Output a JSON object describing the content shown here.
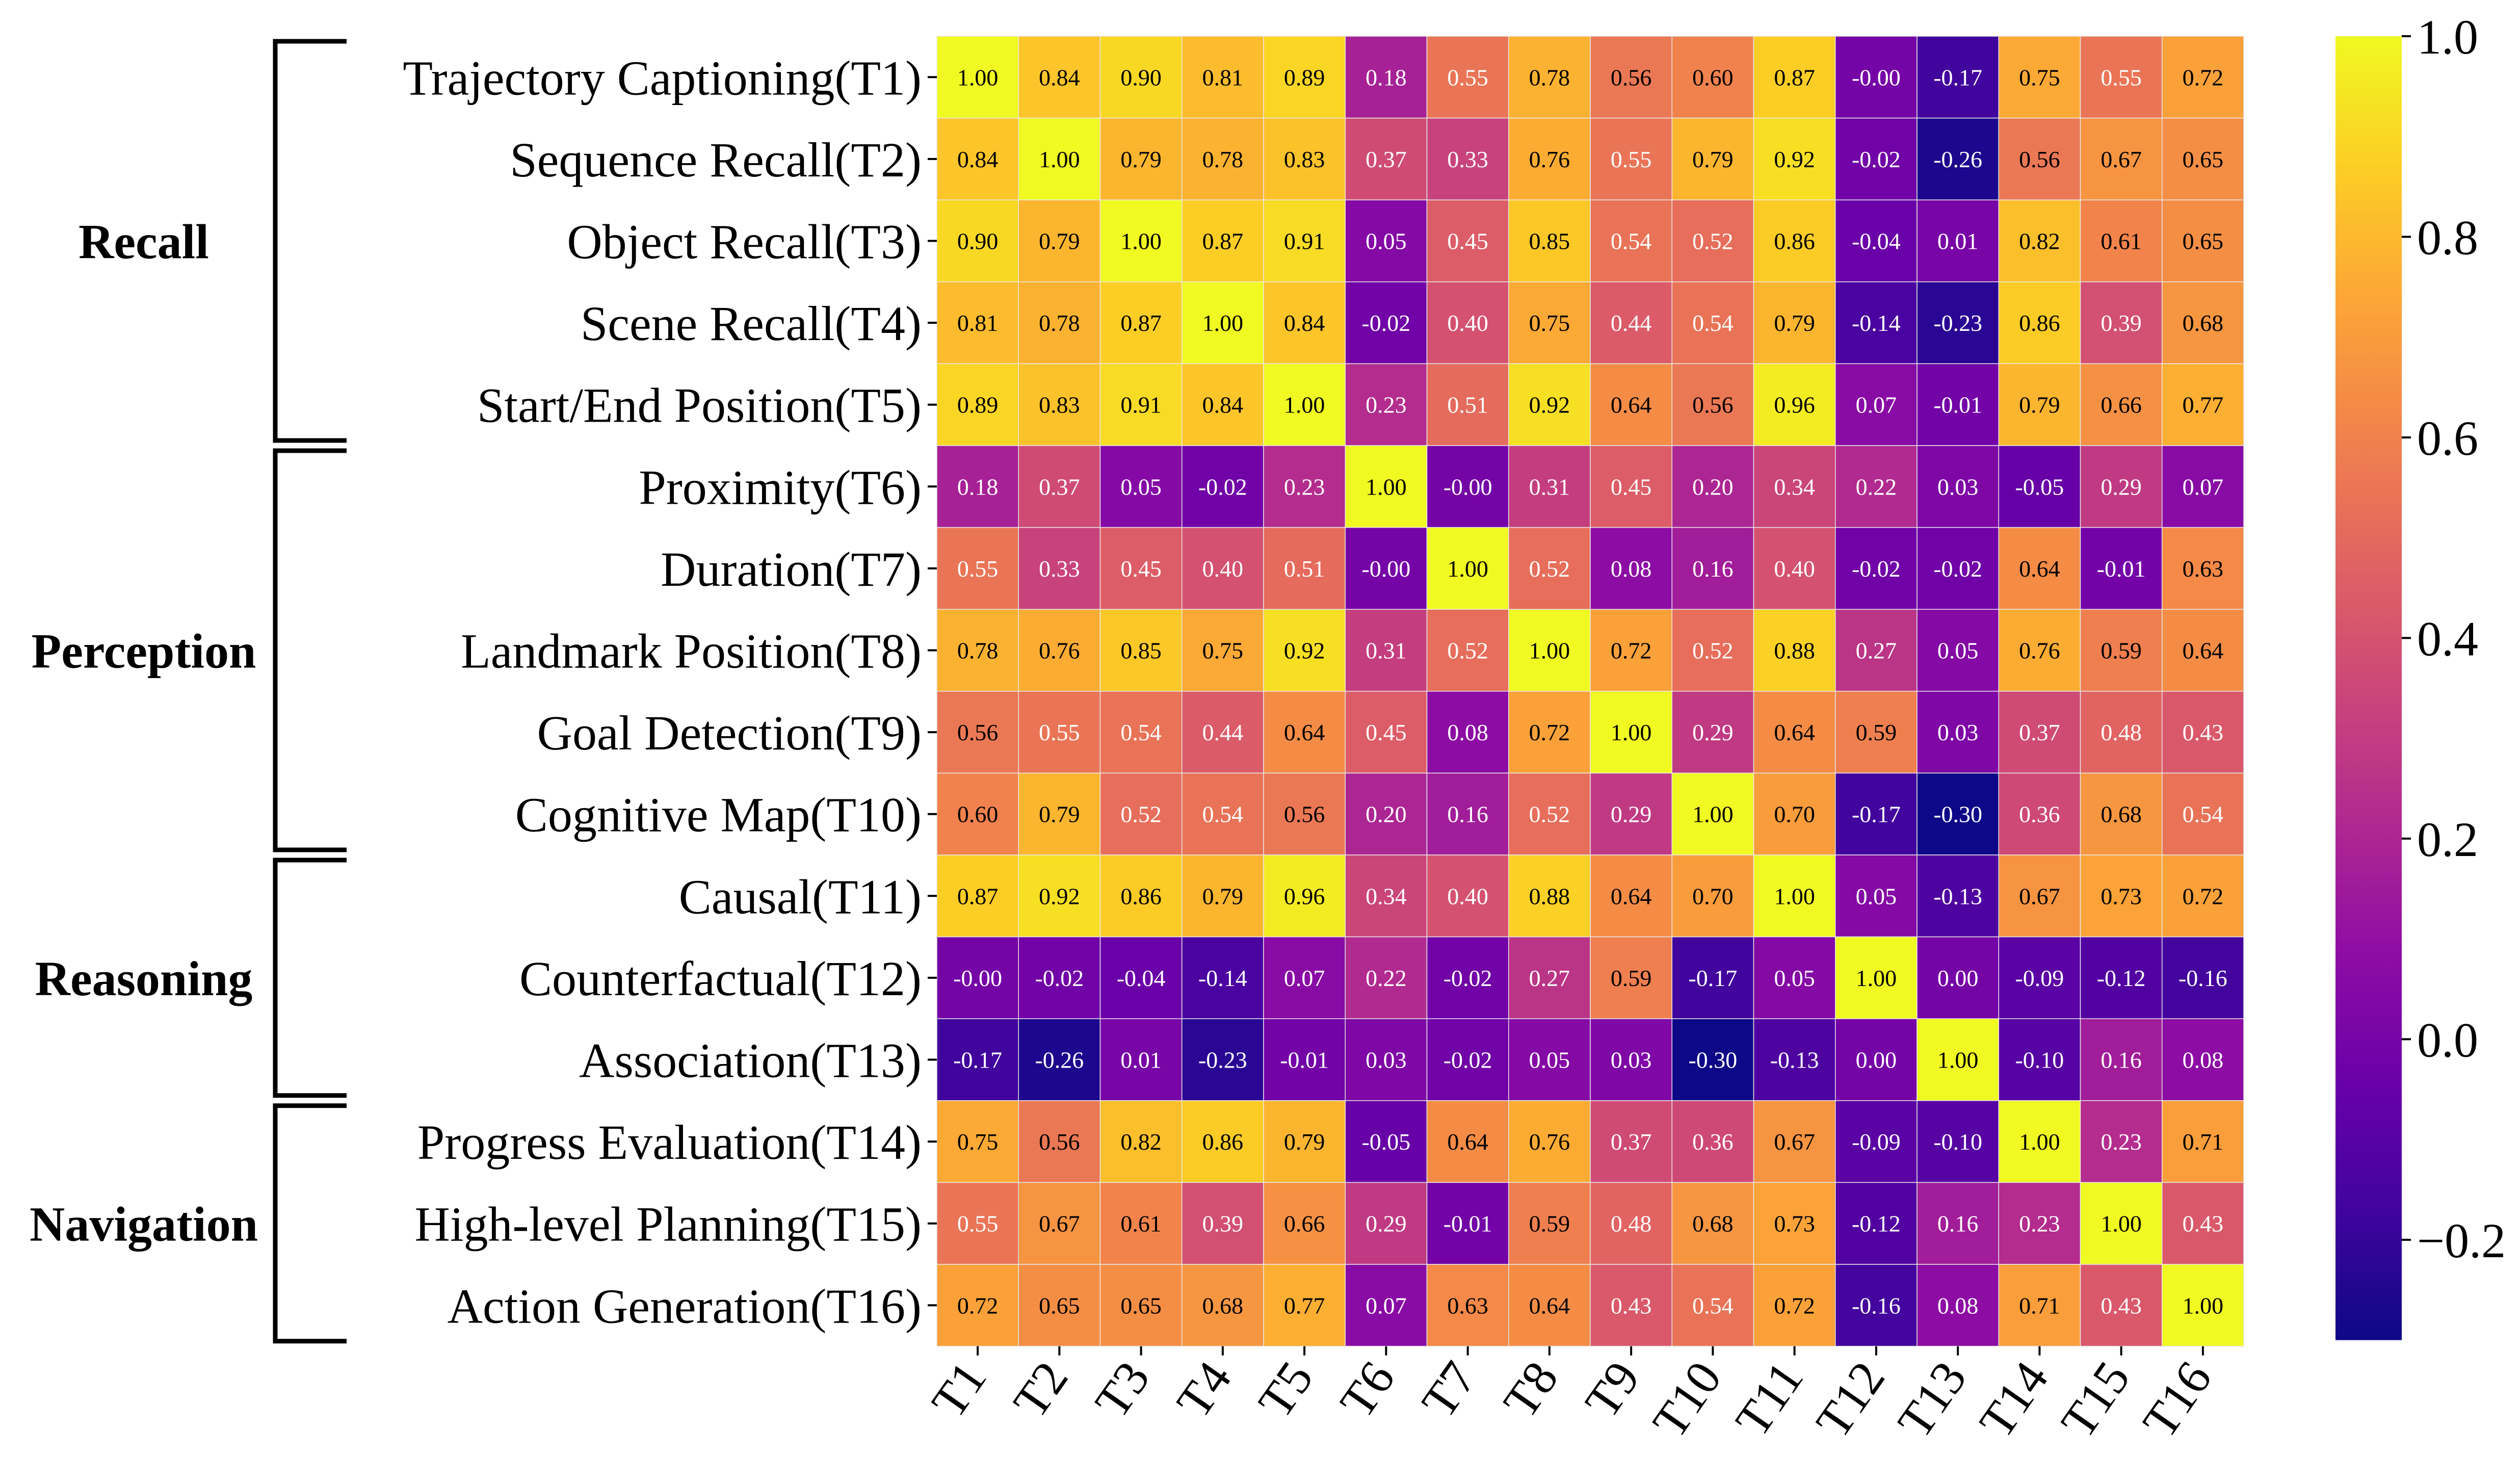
{
  "chart_data": {
    "type": "heatmap",
    "title": "",
    "xlabel": "",
    "ylabel": "",
    "colormap": "plasma",
    "cell_border_color": "#e8e8e8",
    "categories_x": [
      "T1",
      "T2",
      "T3",
      "T4",
      "T5",
      "T6",
      "T7",
      "T8",
      "T9",
      "T10",
      "T11",
      "T12",
      "T13",
      "T14",
      "T15",
      "T16"
    ],
    "categories_y": [
      "Trajectory Captioning(T1)",
      "Sequence Recall(T2)",
      "Object Recall(T3)",
      "Scene Recall(T4)",
      "Start/End Position(T5)",
      "Proximity(T6)",
      "Duration(T7)",
      "Landmark Position(T8)",
      "Goal Detection(T9)",
      "Cognitive Map(T10)",
      "Causal(T11)",
      "Counterfactual(T12)",
      "Association(T13)",
      "Progress Evaluation(T14)",
      "High-level Planning(T15)",
      "Action Generation(T16)"
    ],
    "cell_labels": [
      [
        "1.00",
        "0.84",
        "0.90",
        "0.81",
        "0.89",
        "0.18",
        "0.55",
        "0.78",
        "0.56",
        "0.60",
        "0.87",
        "-0.00",
        "-0.17",
        "0.75",
        "0.55",
        "0.72"
      ],
      [
        "0.84",
        "1.00",
        "0.79",
        "0.78",
        "0.83",
        "0.37",
        "0.33",
        "0.76",
        "0.55",
        "0.79",
        "0.92",
        "-0.02",
        "-0.26",
        "0.56",
        "0.67",
        "0.65"
      ],
      [
        "0.90",
        "0.79",
        "1.00",
        "0.87",
        "0.91",
        "0.05",
        "0.45",
        "0.85",
        "0.54",
        "0.52",
        "0.86",
        "-0.04",
        "0.01",
        "0.82",
        "0.61",
        "0.65"
      ],
      [
        "0.81",
        "0.78",
        "0.87",
        "1.00",
        "0.84",
        "-0.02",
        "0.40",
        "0.75",
        "0.44",
        "0.54",
        "0.79",
        "-0.14",
        "-0.23",
        "0.86",
        "0.39",
        "0.68"
      ],
      [
        "0.89",
        "0.83",
        "0.91",
        "0.84",
        "1.00",
        "0.23",
        "0.51",
        "0.92",
        "0.64",
        "0.56",
        "0.96",
        "0.07",
        "-0.01",
        "0.79",
        "0.66",
        "0.77"
      ],
      [
        "0.18",
        "0.37",
        "0.05",
        "-0.02",
        "0.23",
        "1.00",
        "-0.00",
        "0.31",
        "0.45",
        "0.20",
        "0.34",
        "0.22",
        "0.03",
        "-0.05",
        "0.29",
        "0.07"
      ],
      [
        "0.55",
        "0.33",
        "0.45",
        "0.40",
        "0.51",
        "-0.00",
        "1.00",
        "0.52",
        "0.08",
        "0.16",
        "0.40",
        "-0.02",
        "-0.02",
        "0.64",
        "-0.01",
        "0.63"
      ],
      [
        "0.78",
        "0.76",
        "0.85",
        "0.75",
        "0.92",
        "0.31",
        "0.52",
        "1.00",
        "0.72",
        "0.52",
        "0.88",
        "0.27",
        "0.05",
        "0.76",
        "0.59",
        "0.64"
      ],
      [
        "0.56",
        "0.55",
        "0.54",
        "0.44",
        "0.64",
        "0.45",
        "0.08",
        "0.72",
        "1.00",
        "0.29",
        "0.64",
        "0.59",
        "0.03",
        "0.37",
        "0.48",
        "0.43"
      ],
      [
        "0.60",
        "0.79",
        "0.52",
        "0.54",
        "0.56",
        "0.20",
        "0.16",
        "0.52",
        "0.29",
        "1.00",
        "0.70",
        "-0.17",
        "-0.30",
        "0.36",
        "0.68",
        "0.54"
      ],
      [
        "0.87",
        "0.92",
        "0.86",
        "0.79",
        "0.96",
        "0.34",
        "0.40",
        "0.88",
        "0.64",
        "0.70",
        "1.00",
        "0.05",
        "-0.13",
        "0.67",
        "0.73",
        "0.72"
      ],
      [
        "-0.00",
        "-0.02",
        "-0.04",
        "-0.14",
        "0.07",
        "0.22",
        "-0.02",
        "0.27",
        "0.59",
        "-0.17",
        "0.05",
        "1.00",
        "0.00",
        "-0.09",
        "-0.12",
        "-0.16"
      ],
      [
        "-0.17",
        "-0.26",
        "0.01",
        "-0.23",
        "-0.01",
        "0.03",
        "-0.02",
        "0.05",
        "0.03",
        "-0.30",
        "-0.13",
        "0.00",
        "1.00",
        "-0.10",
        "0.16",
        "0.08"
      ],
      [
        "0.75",
        "0.56",
        "0.82",
        "0.86",
        "0.79",
        "-0.05",
        "0.64",
        "0.76",
        "0.37",
        "0.36",
        "0.67",
        "-0.09",
        "-0.10",
        "1.00",
        "0.23",
        "0.71"
      ],
      [
        "0.55",
        "0.67",
        "0.61",
        "0.39",
        "0.66",
        "0.29",
        "-0.01",
        "0.59",
        "0.48",
        "0.68",
        "0.73",
        "-0.12",
        "0.16",
        "0.23",
        "1.00",
        "0.43"
      ],
      [
        "0.72",
        "0.65",
        "0.65",
        "0.68",
        "0.77",
        "0.07",
        "0.63",
        "0.64",
        "0.43",
        "0.54",
        "0.72",
        "-0.16",
        "0.08",
        "0.71",
        "0.43",
        "1.00"
      ]
    ],
    "groups": [
      {
        "label": "Recall",
        "first_row": 0,
        "last_row": 4
      },
      {
        "label": "Perception",
        "first_row": 5,
        "last_row": 9
      },
      {
        "label": "Reasoning",
        "first_row": 10,
        "last_row": 12
      },
      {
        "label": "Navigation",
        "first_row": 13,
        "last_row": 15
      }
    ],
    "colorbar": {
      "vmin": -0.3,
      "vmax": 1.0,
      "ticks": [
        -0.2,
        0.0,
        0.2,
        0.4,
        0.6,
        0.8,
        1.0
      ],
      "tick_labels": [
        "−0.2",
        "0.0",
        "0.2",
        "0.4",
        "0.6",
        "0.8",
        "1.0"
      ]
    }
  }
}
